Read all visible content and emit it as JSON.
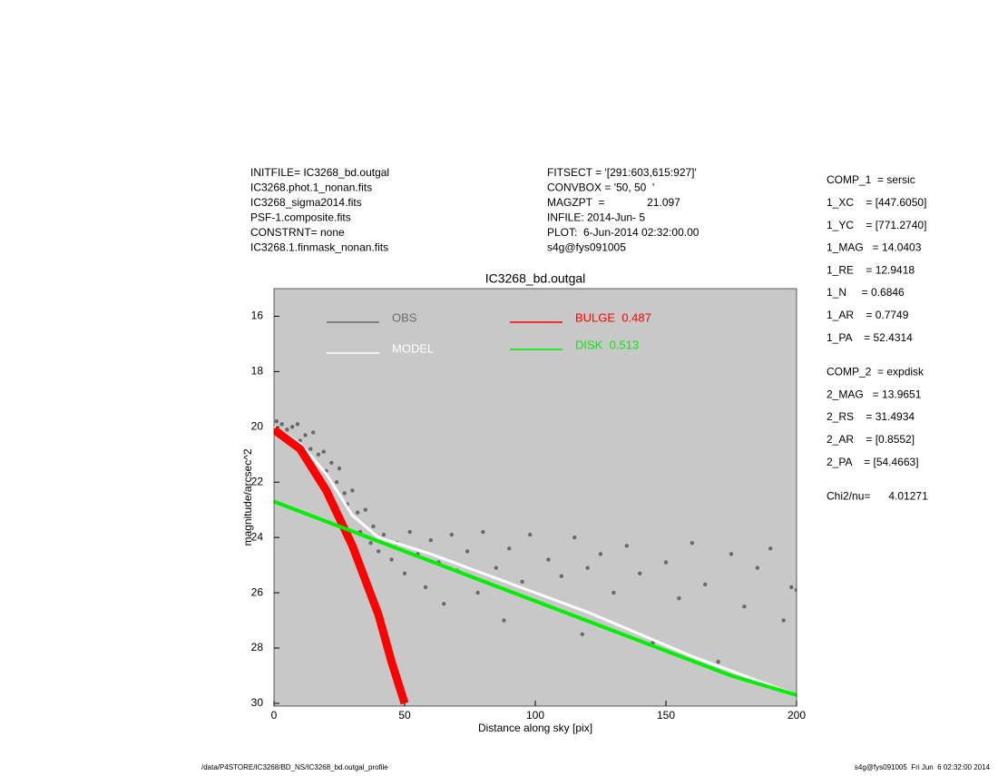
{
  "header": {
    "left": [
      "INITFILE= IC3268_bd.outgal",
      "IC3268.phot.1_nonan.fits",
      "IC3268_sigma2014.fits",
      "PSF-1.composite.fits",
      "CONSTRNT= none",
      "IC3268.1.finmask_nonan.fits"
    ],
    "middle": [
      "FITSECT = '[291:603,615:927]'",
      "CONVBOX = '50, 50  '",
      "MAGZPT  =              21.097",
      "INFILE: 2014-Jun- 5",
      "PLOT:  6-Jun-2014 02:32:00.00",
      "s4g@fys091005"
    ]
  },
  "params": [
    [
      "COMP_1  = sersic",
      "1_XC    = [447.6050]",
      "1_YC    = [771.2740]",
      "1_MAG   = 14.0403",
      "1_RE    = 12.9418",
      "1_N     = 0.6846",
      "1_AR    = 0.7749",
      "1_PA    = 52.4314"
    ],
    [
      "COMP_2  = expdisk",
      "2_MAG   = 13.9651",
      "2_RS    = 31.4934",
      "2_AR    = [0.8552]",
      "2_PA    = [54.4663]"
    ],
    [
      "Chi2/nu=      4.01271"
    ]
  ],
  "footer": {
    "left": "/data/P4STORE/IC3268/BD_NS/IC3268_bd.outgal_profile",
    "right": "s4g@fys091005  Fri Jun  6 02:32:00 2014"
  },
  "chart_data": {
    "type": "scatter",
    "title": "IC3268_bd.outgal",
    "x_label": "Distance along sky [pix]",
    "y_label": "magnitude/arcsec^2",
    "xlim": [
      0,
      200
    ],
    "xticks": [
      0,
      50,
      100,
      150,
      200
    ],
    "ylim": [
      30.1,
      15
    ],
    "yticks": [
      16,
      18,
      20,
      22,
      24,
      26,
      28,
      30
    ],
    "background": "#c8c8c8",
    "series": [
      {
        "name": "OBS",
        "color": "#6a6a6a",
        "mode": "markers",
        "x": [
          1,
          3,
          5,
          7,
          9,
          10,
          12,
          14,
          15,
          17,
          19,
          20,
          22,
          24,
          25,
          27,
          28,
          30,
          32,
          33,
          35,
          37,
          38,
          40,
          42,
          45,
          47,
          50,
          52,
          55,
          58,
          60,
          63,
          65,
          68,
          70,
          74,
          78,
          80,
          85,
          88,
          90,
          95,
          98,
          100,
          105,
          110,
          115,
          118,
          120,
          125,
          130,
          135,
          140,
          145,
          150,
          155,
          160,
          165,
          170,
          175,
          180,
          185,
          190,
          195,
          198,
          200
        ],
        "values": [
          19.8,
          19.9,
          20.1,
          20.0,
          19.9,
          20.5,
          20.3,
          20.8,
          20.2,
          21.0,
          20.9,
          21.6,
          21.3,
          22.0,
          21.5,
          22.4,
          22.8,
          22.3,
          23.1,
          23.8,
          23.0,
          24.2,
          23.6,
          24.5,
          23.9,
          24.8,
          24.2,
          25.3,
          23.8,
          24.6,
          25.8,
          24.1,
          24.9,
          26.4,
          23.9,
          25.2,
          24.5,
          26.0,
          23.8,
          25.1,
          27.0,
          24.4,
          25.6,
          23.9,
          26.3,
          24.8,
          25.4,
          24.0,
          27.5,
          25.1,
          24.6,
          26.0,
          24.3,
          25.3,
          27.8,
          24.9,
          26.2,
          24.2,
          25.7,
          28.5,
          24.6,
          26.5,
          25.1,
          24.4,
          27.0,
          25.8,
          25.9
        ]
      },
      {
        "name": "MODEL",
        "color": "#ffffff",
        "mode": "line",
        "width": 3,
        "x": [
          0,
          10,
          20,
          30,
          40,
          60,
          80,
          100,
          120,
          140,
          160,
          180,
          200
        ],
        "values": [
          20.0,
          20.6,
          21.7,
          23.2,
          24.0,
          24.6,
          25.3,
          26.0,
          26.7,
          27.5,
          28.3,
          29.0,
          29.7
        ]
      },
      {
        "name": "BULGE  0.487",
        "color": "#ff0000",
        "mode": "line",
        "width": 9,
        "x": [
          0,
          10,
          20,
          30,
          40,
          45,
          50
        ],
        "values": [
          20.1,
          20.8,
          22.3,
          24.3,
          26.8,
          28.5,
          30.0
        ]
      },
      {
        "name": "DISK  0.513",
        "color": "#00ee00",
        "mode": "line",
        "width": 4,
        "x": [
          0,
          25,
          50,
          75,
          100,
          125,
          150,
          175,
          200
        ],
        "values": [
          22.7,
          23.6,
          24.5,
          25.4,
          26.3,
          27.2,
          28.1,
          29.0,
          29.7
        ]
      }
    ]
  }
}
